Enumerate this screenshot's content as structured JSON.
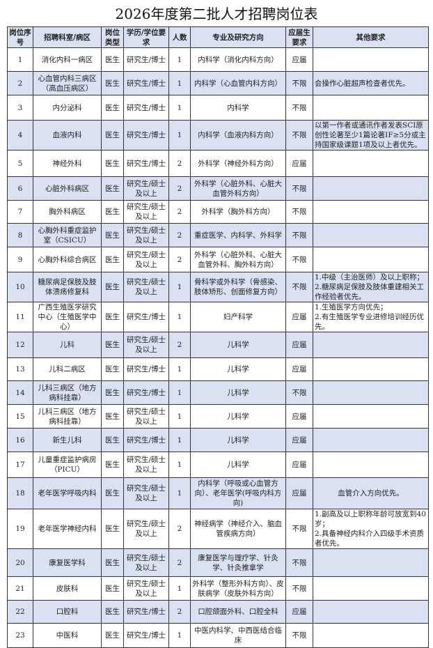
{
  "title": "2026年度第二批人才招聘岗位表",
  "headers": [
    "岗位序号",
    "招聘科室/病区",
    "岗位类型",
    "学历/学位要求",
    "人数",
    "专业及研究方向",
    "应届生要求",
    "其他要求"
  ],
  "rows": [
    {
      "no": "1",
      "dept": "消化内科一病区",
      "type": "医生",
      "edu": "研究生/博士",
      "count": "1",
      "major": "内科学（消化内科方向）",
      "fresh": "应届",
      "other": ""
    },
    {
      "no": "2",
      "dept": "心血管内科三病区（高血压病区）",
      "type": "医生",
      "edu": "研究生/博士",
      "count": "1",
      "major": "内科学（心血管内科方向）",
      "fresh": "不限",
      "other": "会操作心脏超声检查者优先。"
    },
    {
      "no": "3",
      "dept": "内分泌科",
      "type": "医生",
      "edu": "研究生/博士",
      "count": "1",
      "major": "内科学",
      "fresh": "不限",
      "other": ""
    },
    {
      "no": "4",
      "dept": "血液内科",
      "type": "医生",
      "edu": "研究生/博士",
      "count": "1",
      "major": "内科学（血液内科方向）",
      "fresh": "不限",
      "other": "以第一作者或通讯作者发表SCI原创性论著至少1篇论著IF≥5分或主持国家级课题1项及以上者优先。"
    },
    {
      "no": "5",
      "dept": "神经外科",
      "type": "医生",
      "edu": "研究生/博士",
      "count": "2",
      "major": "外科学（神经外科方向）",
      "fresh": "应届",
      "other": ""
    },
    {
      "no": "6",
      "dept": "心脏外科病区",
      "type": "医生",
      "edu": "研究生/硕士及以上",
      "count": "2",
      "major": "外科学（心脏外科、心脏大血管外科方向）",
      "fresh": "不限",
      "other": ""
    },
    {
      "no": "7",
      "dept": "胸外科病区",
      "type": "医生",
      "edu": "研究生/硕士及以上",
      "count": "2",
      "major": "外科学（胸外科方向）",
      "fresh": "不限",
      "other": ""
    },
    {
      "no": "8",
      "dept": "心胸外科重症监护室（CSICU）",
      "type": "医生",
      "edu": "研究生/硕士及以上",
      "count": "2",
      "major": "重症医学、内科学、外科学",
      "fresh": "不限",
      "other": ""
    },
    {
      "no": "9",
      "dept": "心胸外科综合病区",
      "type": "医生",
      "edu": "研究生/硕士及以上",
      "count": "2",
      "major": "外科学（心脏外科、心脏大血管外科、胸外科方向）",
      "fresh": "不限",
      "other": ""
    },
    {
      "no": "10",
      "dept": "糖尿病足保肢及肢体溃疡修复科",
      "type": "医生",
      "edu": "研究生/硕士及以上",
      "count": "1",
      "major": "骨科学或外科学（骨感染、肢体矫形、创面修复方向）",
      "fresh": "不限",
      "other": "1.中级（主治医师）及以上职称；\n2.糖尿病足保肢及肢体重建相关工作经验者优先。"
    },
    {
      "no": "11",
      "dept": "广西生殖医学研究中心（生殖医学中心）",
      "type": "医生",
      "edu": "研究生/博士",
      "count": "1",
      "major": "妇产科学",
      "fresh": "应届",
      "other": "1.生殖医学方向优先；\n2.有生殖医学专业进修培训经历优先。"
    },
    {
      "no": "12",
      "dept": "儿科",
      "type": "医生",
      "edu": "研究生/硕士及以上",
      "count": "2",
      "major": "儿科学",
      "fresh": "应届",
      "other": ""
    },
    {
      "no": "13",
      "dept": "儿科二病区",
      "type": "医生",
      "edu": "研究生/博士",
      "count": "1",
      "major": "儿科学",
      "fresh": "应届",
      "other": ""
    },
    {
      "no": "14",
      "dept": "儿科三病区（地方病科挂靠）",
      "type": "医生",
      "edu": "研究生/博士",
      "count": "1",
      "major": "儿科学",
      "fresh": "不限",
      "other": ""
    },
    {
      "no": "15",
      "dept": "儿科三病区（地方病科挂靠）",
      "type": "医生",
      "edu": "研究生/硕士及以上",
      "count": "1",
      "major": "儿科学",
      "fresh": "应届",
      "other": ""
    },
    {
      "no": "16",
      "dept": "新生儿科",
      "type": "医生",
      "edu": "研究生/博士",
      "count": "1",
      "major": "儿科学",
      "fresh": "应届",
      "other": ""
    },
    {
      "no": "17",
      "dept": "儿童重症监护病房（PICU）",
      "type": "医生",
      "edu": "研究生/硕士及以上",
      "count": "1",
      "major": "儿科学",
      "fresh": "应届",
      "other": ""
    },
    {
      "no": "18",
      "dept": "老年医学呼吸内科",
      "type": "医生",
      "edu": "研究生/硕士及以上",
      "count": "1",
      "major": "内科学（呼吸或心血管方向）、老年医学(呼吸内科方向)",
      "fresh": "应届",
      "other": "血管介入方向优先。"
    },
    {
      "no": "19",
      "dept": "老年医学神经内科",
      "type": "医生",
      "edu": "研究生/硕士及以上",
      "count": "2",
      "major": "神经病学（神经介入、脑血管疾病方向）",
      "fresh": "不限",
      "other": "1.副高及以上职称年龄可放宽到40岁；\n2.具备神经内科介入四级手术资质者优先。"
    },
    {
      "no": "20",
      "dept": "康复医学科",
      "type": "医生",
      "edu": "研究生/硕士及以上",
      "count": "2",
      "major": "康复医学与理疗学、针灸学、针灸推拿学",
      "fresh": "不限",
      "other": ""
    },
    {
      "no": "21",
      "dept": "皮肤科",
      "type": "医生",
      "edu": "研究生/硕士及以上",
      "count": "1",
      "major": "外科学（整形外科方向）、皮肤病学（皮肤外科方向）",
      "fresh": "不限",
      "other": ""
    },
    {
      "no": "22",
      "dept": "口腔科",
      "type": "医生",
      "edu": "研究生/博士",
      "count": "2",
      "major": "口腔颌面外科、口腔全科",
      "fresh": "应届",
      "other": ""
    },
    {
      "no": "23",
      "dept": "中医科",
      "type": "医生",
      "edu": "研究生/博士",
      "count": "1",
      "major": "中医内科学、中西医结合临床",
      "fresh": "不限",
      "other": ""
    }
  ],
  "colors": {
    "header_bg": "#d9e1f2",
    "shade_bg": "#d9e1f2",
    "border": "#333333"
  }
}
